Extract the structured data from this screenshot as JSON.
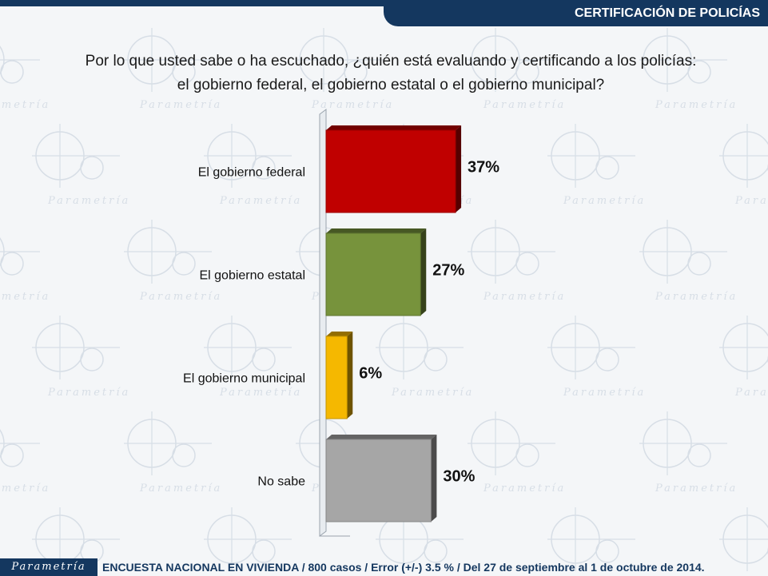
{
  "header": {
    "title": "CERTIFICACIÓN DE POLICÍAS"
  },
  "question": {
    "line1": "Por lo que usted sabe o ha escuchado, ¿quién está evaluando y certificando a los policías:",
    "line2": "el gobierno federal, el gobierno estatal o el gobierno municipal?"
  },
  "chart_data": {
    "type": "bar",
    "orientation": "horizontal",
    "categories": [
      "El gobierno federal",
      "El gobierno estatal",
      "El gobierno municipal",
      "No sabe"
    ],
    "values": [
      37,
      27,
      6,
      30
    ],
    "value_labels": [
      "37%",
      "27%",
      "6%",
      "30%"
    ],
    "colors": [
      "#c00000",
      "#77933c",
      "#f5b800",
      "#a6a6a6"
    ],
    "xlim": [
      0,
      40
    ],
    "grid": false,
    "legend": "none",
    "style": "3d"
  },
  "footer": {
    "logo": "Parametría",
    "text": "ENCUESTA NACIONAL EN VIVIENDA / 800 casos / Error (+/-) 3.5 % / Del 27 de septiembre al 1 de octubre de 2014."
  },
  "watermark": {
    "text": "Parametría"
  }
}
